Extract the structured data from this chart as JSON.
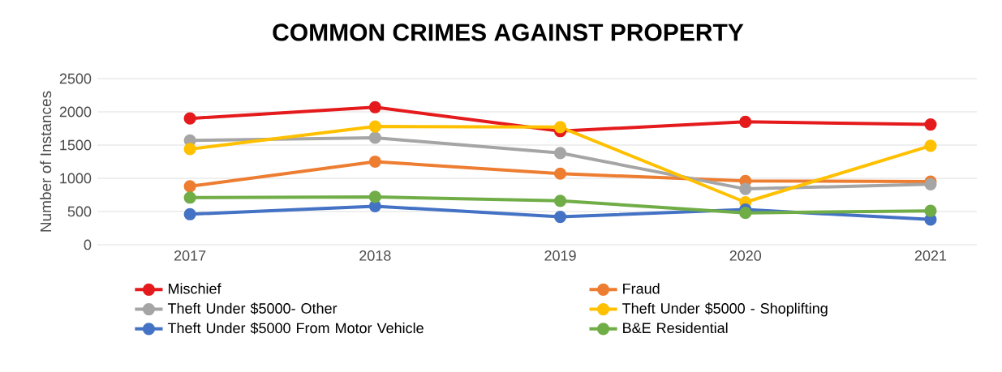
{
  "chart_data": {
    "type": "line",
    "title": "COMMON CRIMES AGAINST PROPERTY",
    "ylabel": "Number of Instances",
    "categories": [
      "2017",
      "2018",
      "2019",
      "2020",
      "2021"
    ],
    "series": [
      {
        "name": "Mischief",
        "color": "#e41a1c",
        "values": [
          1900,
          2070,
          1710,
          1850,
          1810
        ]
      },
      {
        "name": "Fraud",
        "color": "#ed7d31",
        "values": [
          880,
          1250,
          1070,
          960,
          950
        ]
      },
      {
        "name": "Theft Under $5000- Other",
        "color": "#a5a5a5",
        "values": [
          1570,
          1610,
          1380,
          840,
          910
        ]
      },
      {
        "name": "Theft Under $5000 - Shoplifting",
        "color": "#ffc000",
        "values": [
          1440,
          1780,
          1770,
          640,
          1490
        ]
      },
      {
        "name": "Theft Under $5000 From Motor Vehicle",
        "color": "#4472c4",
        "values": [
          460,
          580,
          420,
          530,
          380
        ]
      },
      {
        "name": "B&E Residential",
        "color": "#70ad47",
        "values": [
          710,
          720,
          660,
          480,
          510
        ]
      }
    ],
    "ylim": [
      0,
      2500
    ],
    "yticks": [
      0,
      500,
      1000,
      1500,
      2000,
      2500
    ],
    "grid": "y",
    "legend": "bottom",
    "marker": "circle",
    "line_style": "solid"
  }
}
